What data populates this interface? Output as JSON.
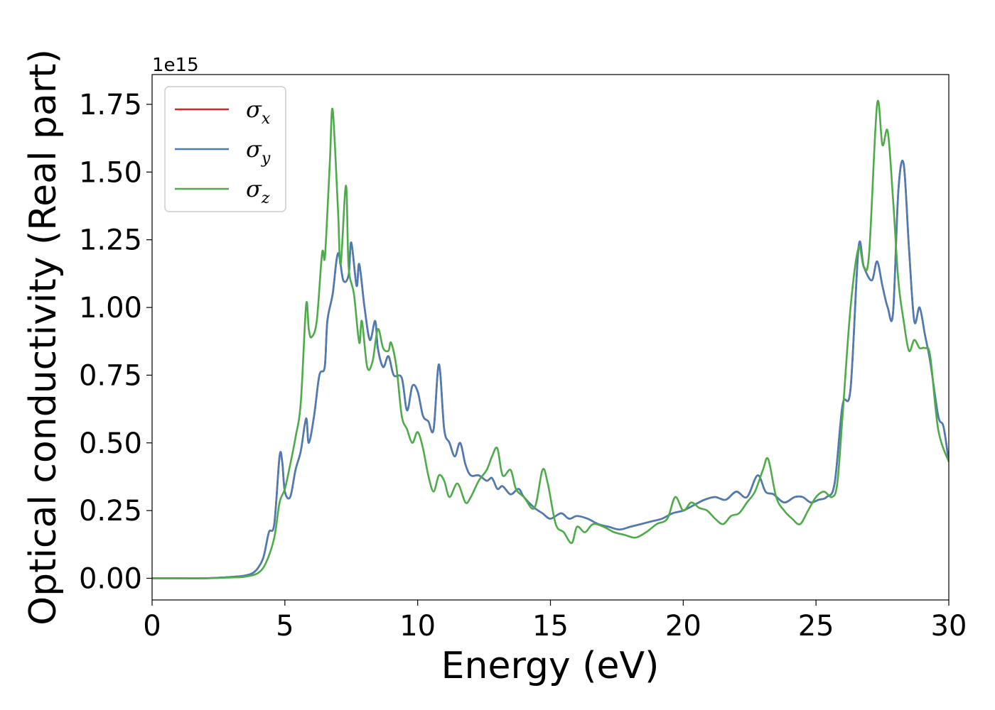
{
  "chart_data": {
    "type": "line",
    "xlabel": "Energy (eV)",
    "ylabel": "Optical conductivity (Real part)",
    "y_offset_label": "1e15",
    "xlim": [
      0,
      30
    ],
    "ylim": [
      -0.08,
      1.86
    ],
    "x_ticks": [
      0,
      5,
      10,
      15,
      20,
      25,
      30
    ],
    "x_tick_labels": [
      "0",
      "5",
      "10",
      "15",
      "20",
      "25",
      "30"
    ],
    "y_ticks": [
      0.0,
      0.25,
      0.5,
      0.75,
      1.0,
      1.25,
      1.5,
      1.75
    ],
    "y_tick_labels": [
      "0.00",
      "0.25",
      "0.50",
      "0.75",
      "1.00",
      "1.25",
      "1.50",
      "1.75"
    ],
    "grid": false,
    "legend_position": "top-left",
    "series": [
      {
        "name": "σx",
        "legend_base": "σ",
        "legend_sub": "x",
        "color": "#d62728",
        "x": [
          0,
          1,
          2,
          3,
          3.5,
          3.8,
          4.0,
          4.2,
          4.4,
          4.6,
          4.8,
          4.9,
          5.0,
          5.2,
          5.4,
          5.6,
          5.8,
          5.9,
          6.1,
          6.3,
          6.5,
          6.6,
          6.8,
          7.0,
          7.2,
          7.4,
          7.5,
          7.7,
          7.8,
          8.0,
          8.2,
          8.4,
          8.5,
          8.7,
          8.9,
          9.1,
          9.4,
          9.6,
          9.8,
          10.0,
          10.2,
          10.4,
          10.6,
          10.8,
          11.0,
          11.2,
          11.4,
          11.6,
          11.8,
          12.0,
          12.3,
          12.6,
          12.8,
          13.0,
          13.2,
          13.5,
          13.8,
          14.0,
          14.4,
          14.7,
          15.0,
          15.4,
          15.7,
          16.0,
          16.4,
          16.8,
          17.2,
          17.6,
          18.0,
          18.4,
          18.8,
          19.2,
          19.6,
          20.0,
          20.4,
          20.8,
          21.2,
          21.6,
          22.0,
          22.4,
          22.8,
          23.1,
          23.4,
          23.8,
          24.2,
          24.5,
          24.8,
          25.1,
          25.4,
          25.7,
          26.0,
          26.3,
          26.6,
          26.8,
          27.1,
          27.3,
          27.5,
          27.7,
          27.9,
          28.1,
          28.3,
          28.5,
          28.7,
          28.9,
          29.1,
          29.3,
          29.6,
          29.8,
          30
        ],
        "values": [
          0,
          0,
          0,
          0.005,
          0.01,
          0.02,
          0.04,
          0.08,
          0.17,
          0.2,
          0.45,
          0.43,
          0.32,
          0.3,
          0.4,
          0.47,
          0.59,
          0.5,
          0.6,
          0.75,
          0.78,
          0.95,
          1.05,
          1.2,
          1.1,
          1.12,
          1.24,
          1.08,
          1.16,
          1.0,
          0.88,
          0.95,
          0.85,
          0.78,
          0.82,
          0.75,
          0.74,
          0.62,
          0.71,
          0.69,
          0.6,
          0.58,
          0.55,
          0.79,
          0.55,
          0.5,
          0.45,
          0.5,
          0.42,
          0.38,
          0.38,
          0.36,
          0.37,
          0.33,
          0.34,
          0.31,
          0.33,
          0.3,
          0.26,
          0.24,
          0.22,
          0.24,
          0.22,
          0.23,
          0.22,
          0.2,
          0.19,
          0.18,
          0.19,
          0.2,
          0.21,
          0.22,
          0.24,
          0.25,
          0.27,
          0.29,
          0.3,
          0.29,
          0.32,
          0.3,
          0.38,
          0.32,
          0.31,
          0.28,
          0.3,
          0.3,
          0.28,
          0.29,
          0.3,
          0.35,
          0.64,
          0.7,
          1.22,
          1.15,
          1.1,
          1.17,
          1.08,
          1.0,
          0.98,
          1.43,
          1.53,
          1.22,
          0.95,
          1.0,
          0.9,
          0.8,
          0.6,
          0.56,
          0.43
        ]
      },
      {
        "name": "σy",
        "legend_base": "σ",
        "legend_sub": "y",
        "color": "#4a7cb5",
        "x": [
          0,
          1,
          2,
          3,
          3.5,
          3.8,
          4.0,
          4.2,
          4.4,
          4.6,
          4.8,
          4.9,
          5.0,
          5.2,
          5.4,
          5.6,
          5.8,
          5.9,
          6.1,
          6.3,
          6.5,
          6.6,
          6.8,
          7.0,
          7.2,
          7.4,
          7.5,
          7.7,
          7.8,
          8.0,
          8.2,
          8.4,
          8.5,
          8.7,
          8.9,
          9.1,
          9.4,
          9.6,
          9.8,
          10.0,
          10.2,
          10.4,
          10.6,
          10.8,
          11.0,
          11.2,
          11.4,
          11.6,
          11.8,
          12.0,
          12.3,
          12.6,
          12.8,
          13.0,
          13.2,
          13.5,
          13.8,
          14.0,
          14.4,
          14.7,
          15.0,
          15.4,
          15.7,
          16.0,
          16.4,
          16.8,
          17.2,
          17.6,
          18.0,
          18.4,
          18.8,
          19.2,
          19.6,
          20.0,
          20.4,
          20.8,
          21.2,
          21.6,
          22.0,
          22.4,
          22.8,
          23.1,
          23.4,
          23.8,
          24.2,
          24.5,
          24.8,
          25.1,
          25.4,
          25.7,
          26.0,
          26.3,
          26.6,
          26.8,
          27.1,
          27.3,
          27.5,
          27.7,
          27.9,
          28.1,
          28.3,
          28.5,
          28.7,
          28.9,
          29.1,
          29.3,
          29.6,
          29.8,
          30
        ],
        "values": [
          0,
          0,
          0,
          0.005,
          0.01,
          0.02,
          0.04,
          0.08,
          0.17,
          0.2,
          0.45,
          0.43,
          0.32,
          0.3,
          0.4,
          0.47,
          0.59,
          0.5,
          0.6,
          0.75,
          0.78,
          0.95,
          1.05,
          1.2,
          1.1,
          1.12,
          1.24,
          1.08,
          1.16,
          1.0,
          0.88,
          0.95,
          0.85,
          0.78,
          0.82,
          0.75,
          0.74,
          0.62,
          0.71,
          0.69,
          0.6,
          0.58,
          0.55,
          0.79,
          0.55,
          0.5,
          0.45,
          0.5,
          0.42,
          0.38,
          0.38,
          0.36,
          0.37,
          0.33,
          0.34,
          0.31,
          0.33,
          0.3,
          0.26,
          0.24,
          0.22,
          0.24,
          0.22,
          0.23,
          0.22,
          0.2,
          0.19,
          0.18,
          0.19,
          0.2,
          0.21,
          0.22,
          0.24,
          0.25,
          0.27,
          0.29,
          0.3,
          0.29,
          0.32,
          0.3,
          0.38,
          0.32,
          0.31,
          0.28,
          0.3,
          0.3,
          0.28,
          0.29,
          0.3,
          0.35,
          0.64,
          0.7,
          1.22,
          1.15,
          1.1,
          1.17,
          1.08,
          1.0,
          0.98,
          1.43,
          1.53,
          1.22,
          0.95,
          1.0,
          0.9,
          0.8,
          0.6,
          0.56,
          0.43
        ]
      },
      {
        "name": "σz",
        "legend_base": "σ",
        "legend_sub": "z",
        "color": "#4dab4a",
        "x": [
          0,
          1,
          2,
          3,
          3.5,
          4.0,
          4.3,
          4.6,
          4.8,
          5.0,
          5.2,
          5.4,
          5.6,
          5.8,
          5.9,
          6.0,
          6.2,
          6.4,
          6.5,
          6.6,
          6.7,
          6.8,
          7.0,
          7.1,
          7.3,
          7.4,
          7.6,
          7.8,
          7.9,
          8.1,
          8.3,
          8.5,
          8.7,
          8.9,
          9.0,
          9.2,
          9.4,
          9.6,
          9.8,
          10.0,
          10.2,
          10.4,
          10.6,
          10.8,
          11.0,
          11.2,
          11.5,
          11.8,
          12.0,
          12.3,
          12.6,
          12.8,
          13.0,
          13.2,
          13.5,
          13.7,
          14.0,
          14.4,
          14.7,
          14.9,
          15.2,
          15.5,
          15.8,
          16.0,
          16.3,
          16.6,
          17.0,
          17.4,
          17.8,
          18.2,
          18.6,
          19.0,
          19.4,
          19.7,
          20.0,
          20.3,
          20.6,
          20.9,
          21.2,
          21.5,
          21.8,
          22.1,
          22.4,
          22.7,
          23.0,
          23.2,
          23.5,
          23.8,
          24.1,
          24.4,
          24.7,
          25.0,
          25.3,
          25.6,
          25.8,
          26.0,
          26.3,
          26.6,
          26.8,
          27.0,
          27.3,
          27.5,
          27.7,
          27.9,
          28.1,
          28.3,
          28.5,
          28.7,
          28.9,
          29.1,
          29.3,
          29.6,
          30
        ],
        "values": [
          0,
          0,
          0,
          0.003,
          0.006,
          0.02,
          0.06,
          0.15,
          0.28,
          0.33,
          0.42,
          0.52,
          0.65,
          1.01,
          0.92,
          0.89,
          0.95,
          1.2,
          1.18,
          1.35,
          1.55,
          1.73,
          1.36,
          1.16,
          1.45,
          1.15,
          1.05,
          0.87,
          0.95,
          0.78,
          0.8,
          0.92,
          0.85,
          0.84,
          0.87,
          0.78,
          0.6,
          0.55,
          0.5,
          0.54,
          0.48,
          0.38,
          0.32,
          0.38,
          0.36,
          0.3,
          0.35,
          0.28,
          0.3,
          0.36,
          0.4,
          0.45,
          0.48,
          0.38,
          0.4,
          0.33,
          0.3,
          0.26,
          0.4,
          0.35,
          0.2,
          0.17,
          0.13,
          0.19,
          0.17,
          0.2,
          0.19,
          0.17,
          0.16,
          0.15,
          0.17,
          0.2,
          0.22,
          0.3,
          0.25,
          0.28,
          0.26,
          0.25,
          0.22,
          0.2,
          0.23,
          0.24,
          0.28,
          0.32,
          0.4,
          0.44,
          0.3,
          0.25,
          0.22,
          0.2,
          0.25,
          0.3,
          0.32,
          0.3,
          0.35,
          0.6,
          1.0,
          1.22,
          1.15,
          1.2,
          1.75,
          1.6,
          1.65,
          1.4,
          1.1,
          0.95,
          0.84,
          0.88,
          0.85,
          0.85,
          0.82,
          0.55,
          0.43
        ]
      }
    ]
  }
}
